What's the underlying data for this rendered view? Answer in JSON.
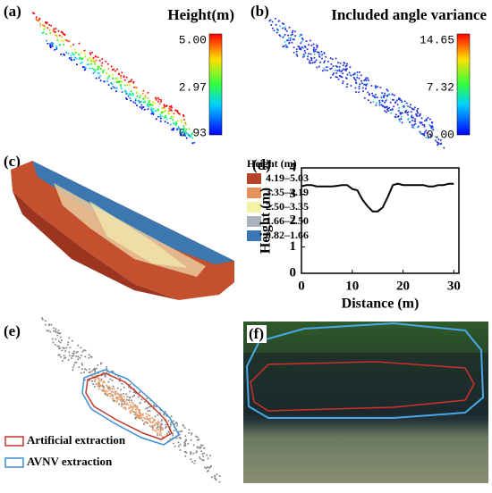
{
  "panels": {
    "a": {
      "label": "(a)",
      "colorbar_title": "Height(m)",
      "ticks": [
        "5.00",
        "2.97",
        "0.93"
      ]
    },
    "b": {
      "label": "(b)",
      "colorbar_title": "Included angle variance",
      "ticks": [
        "14.65",
        "7.32",
        "0.00"
      ]
    },
    "c": {
      "label": "(c)",
      "legend_title": "Height (m)",
      "legend": [
        {
          "label": "4.19–5.03",
          "color": "#b5452a"
        },
        {
          "label": "3.35–4.19",
          "color": "#e8935c"
        },
        {
          "label": "2.50–3.35",
          "color": "#f7f3a6"
        },
        {
          "label": "1.66–2.50",
          "color": "#aab3bd"
        },
        {
          "label": "0.82–1.66",
          "color": "#3a76b4"
        }
      ]
    },
    "d": {
      "label": "(d)"
    },
    "e": {
      "label": "(e)",
      "legend": [
        {
          "label": "Artificial extraction",
          "color": "#c0392b"
        },
        {
          "label": "AVNV extraction",
          "color": "#3b8fd6"
        }
      ]
    },
    "f": {
      "label": "(f)"
    }
  },
  "chart_data": {
    "type": "line",
    "x_label": "Distance (m)",
    "y_label": "Height (m)",
    "x": [
      0,
      1,
      2,
      3,
      4,
      5,
      6,
      7,
      8,
      9,
      10,
      11,
      12,
      13,
      14,
      15,
      16,
      17,
      18,
      19,
      20,
      21,
      22,
      23,
      24,
      25,
      26,
      27,
      28,
      29,
      30
    ],
    "series": [
      {
        "color": "#000000",
        "values": [
          3.3,
          3.35,
          3.35,
          3.3,
          3.3,
          3.3,
          3.3,
          3.32,
          3.35,
          3.35,
          3.2,
          3.15,
          2.8,
          2.55,
          2.35,
          2.35,
          2.5,
          2.9,
          3.35,
          3.4,
          3.35,
          3.35,
          3.35,
          3.35,
          3.35,
          3.3,
          3.3,
          3.35,
          3.35,
          3.4,
          3.4
        ]
      }
    ],
    "xlim": [
      0,
      31
    ],
    "ylim": [
      0,
      4
    ],
    "xticks": [
      0,
      10,
      20,
      30
    ],
    "yticks": [
      0,
      1,
      2,
      3,
      4
    ]
  }
}
